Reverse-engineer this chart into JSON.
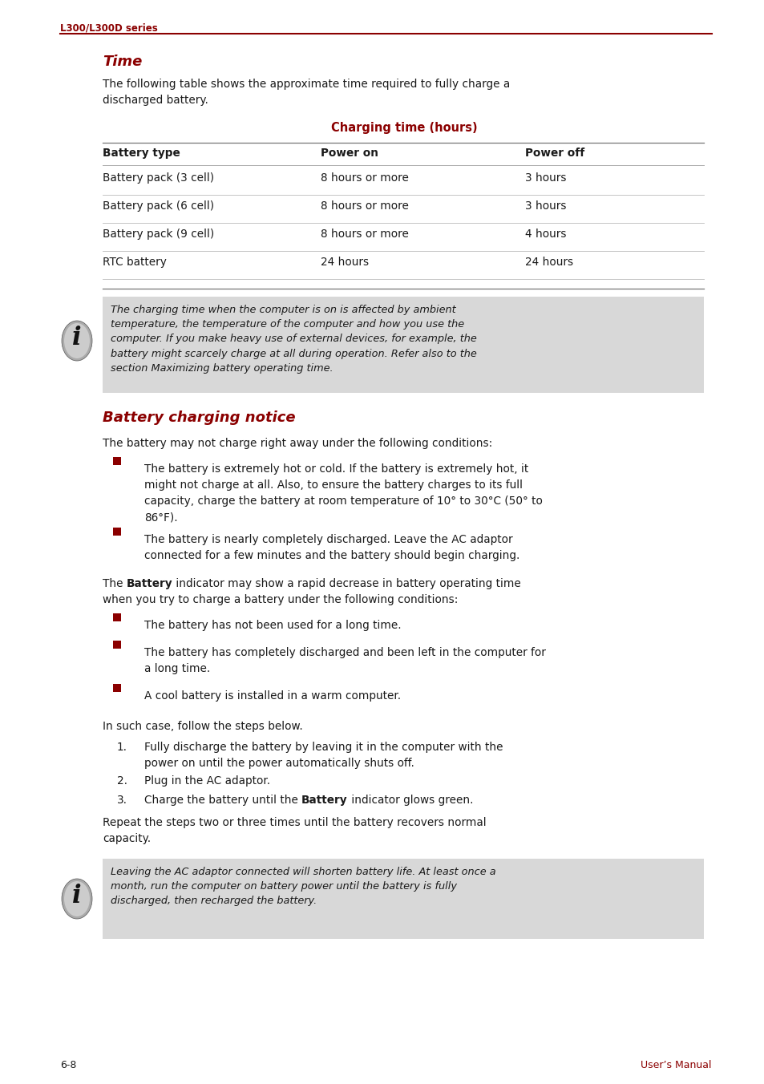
{
  "page_label": "L300/L300D series",
  "page_footer_left": "6-8",
  "page_footer_right": "User’s Manual",
  "red_color": "#8B0000",
  "dark_color": "#1a1a1a",
  "note_bg": "#d8d8d8",
  "bg_color": "#ffffff",
  "section1_title": "Time",
  "section1_intro": "The following table shows the approximate time required to fully charge a\ndischarged battery.",
  "table_title": "Charging time (hours)",
  "table_headers": [
    "Battery type",
    "Power on",
    "Power off"
  ],
  "table_rows": [
    [
      "Battery pack (3 cell)",
      "8 hours or more",
      "3 hours"
    ],
    [
      "Battery pack (6 cell)",
      "8 hours or more",
      "3 hours"
    ],
    [
      "Battery pack (9 cell)",
      "8 hours or more",
      "4 hours"
    ],
    [
      "RTC battery",
      "24 hours",
      "24 hours"
    ]
  ],
  "note1_lines": [
    "The charging time when the computer is on is affected by ambient",
    "temperature, the temperature of the computer and how you use the",
    "computer. If you make heavy use of external devices, for example, the",
    "battery might scarcely charge at all during operation. Refer also to the",
    "section Maximizing battery operating time."
  ],
  "section2_title": "Battery charging notice",
  "section2_intro": "The battery may not charge right away under the following conditions:",
  "bullet1_lines": [
    [
      "The battery is extremely hot or cold. If the battery is extremely hot, it",
      "might not charge at all. Also, to ensure the battery charges to its full",
      "capacity, charge the battery at room temperature of 10° to 30°C (50° to",
      "86°F)."
    ],
    [
      "The battery is nearly completely discharged. Leave the AC adaptor",
      "connected for a few minutes and the battery should begin charging."
    ]
  ],
  "para2_parts": [
    {
      "text": "The ",
      "bold": false
    },
    {
      "text": "Battery",
      "bold": true
    },
    {
      "text": " indicator may show a rapid decrease in battery operating time",
      "bold": false
    }
  ],
  "para2_line2": "when you try to charge a battery under the following conditions:",
  "bullet2_lines": [
    [
      "The battery has not been used for a long time."
    ],
    [
      "The battery has completely discharged and been left in the computer for",
      "a long time."
    ],
    [
      "A cool battery is installed in a warm computer."
    ]
  ],
  "steps_intro": "In such case, follow the steps below.",
  "step1_lines": [
    "Fully discharge the battery by leaving it in the computer with the",
    "power on until the power automatically shuts off."
  ],
  "step2_line": "Plug in the AC adaptor.",
  "step3_parts": [
    {
      "text": "Charge the battery until the ",
      "bold": false
    },
    {
      "text": "Battery",
      "bold": true
    },
    {
      "text": " indicator glows green.",
      "bold": false
    }
  ],
  "repeat_lines": [
    "Repeat the steps two or three times until the battery recovers normal",
    "capacity."
  ],
  "note2_lines": [
    "Leaving the AC adaptor connected will shorten battery life. At least once a",
    "month, run the computer on battery power until the battery is fully",
    "discharged, then recharged the battery."
  ]
}
